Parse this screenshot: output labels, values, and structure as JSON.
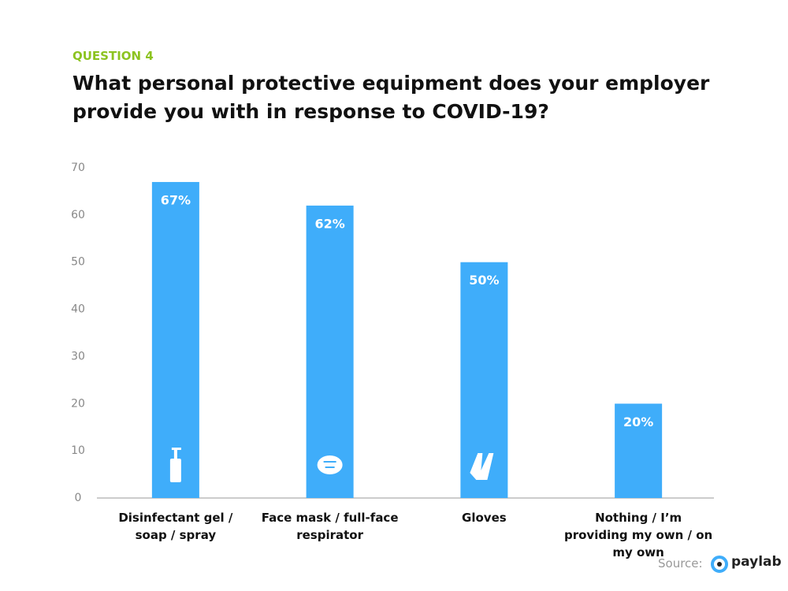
{
  "chart_data": {
    "type": "bar",
    "kicker": "QUESTION 4",
    "title": [
      "What personal protective equipment does your employer",
      "provide you with in response to COVID-19?"
    ],
    "categories": [
      "Disinfectant gel / soap / spray",
      "Face mask / full-face respirator",
      "Gloves",
      "Nothing / I’m providing my own / on my own"
    ],
    "values": [
      67,
      62,
      50,
      20
    ],
    "value_labels": [
      "67%",
      "62%",
      "50%",
      "20%"
    ],
    "color": "#3fadfa",
    "ylim": [
      0,
      70
    ],
    "yticks": [
      0,
      10,
      20,
      30,
      40,
      50,
      60,
      70
    ],
    "grid": false,
    "source_label": "Source:",
    "logo": "paylab"
  }
}
